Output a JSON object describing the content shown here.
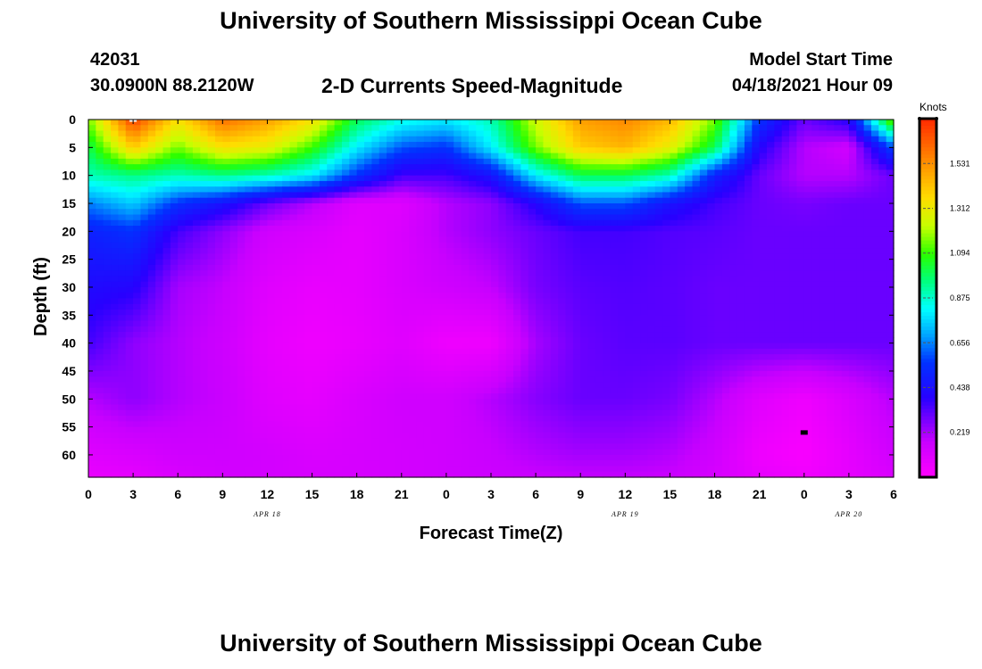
{
  "header": {
    "title": "University of Southern Mississippi Ocean Cube",
    "station_id": "42031",
    "coords": "30.0900N  88.2120W",
    "plot_title": "2-D Currents Speed-Magnitude",
    "model_start_label": "Model Start Time",
    "model_start_value": "04/18/2021 Hour 09"
  },
  "footer": {
    "title": "University of Southern Mississippi Ocean Cube"
  },
  "chart_data": {
    "type": "heatmap",
    "title": "2-D Currents Speed-Magnitude",
    "xlabel": "Forecast Time(Z)",
    "ylabel": "Depth (ft)",
    "x_tick_labels": [
      "0",
      "3",
      "6",
      "9",
      "12",
      "15",
      "18",
      "21",
      "0",
      "3",
      "6",
      "9",
      "12",
      "15",
      "18",
      "21",
      "0",
      "3",
      "6"
    ],
    "x_range_hours": [
      0,
      54
    ],
    "date_labels": [
      {
        "text": "APR 18",
        "hour": 12
      },
      {
        "text": "APR 19",
        "hour": 36
      },
      {
        "text": "APR 20",
        "hour": 51
      }
    ],
    "y_tick_labels": [
      "0",
      "5",
      "10",
      "15",
      "20",
      "25",
      "30",
      "35",
      "40",
      "45",
      "50",
      "55",
      "60"
    ],
    "y_range_ft": [
      0,
      64
    ],
    "y_inverted": true,
    "colorbar": {
      "label": "Knots",
      "min": 0,
      "max": 1.75,
      "tick_values": [
        0.219,
        0.438,
        0.656,
        0.875,
        1.094,
        1.312,
        1.531
      ],
      "tick_labels": [
        "0.219",
        "0.438",
        "0.656",
        "0.875",
        "1.094",
        "1.312",
        "1.531"
      ]
    },
    "grid_hours": [
      0,
      3,
      6,
      9,
      12,
      15,
      18,
      21,
      24,
      27,
      30,
      33,
      36,
      39,
      42,
      45,
      48,
      51,
      54
    ],
    "grid_depths_ft": [
      0,
      5,
      10,
      15,
      20,
      30,
      40,
      50,
      60,
      64
    ],
    "speed_knots": [
      [
        1.15,
        1.7,
        1.35,
        1.6,
        1.5,
        1.35,
        1.0,
        0.85,
        0.8,
        0.9,
        1.25,
        1.5,
        1.55,
        1.45,
        1.15,
        0.55,
        0.3,
        0.4,
        1.2
      ],
      [
        1.0,
        1.4,
        1.15,
        1.35,
        1.3,
        1.1,
        0.8,
        0.6,
        0.55,
        0.8,
        1.15,
        1.4,
        1.45,
        1.3,
        1.0,
        0.4,
        0.2,
        0.15,
        0.6
      ],
      [
        0.9,
        0.95,
        0.9,
        0.95,
        0.9,
        0.8,
        0.55,
        0.35,
        0.35,
        0.45,
        0.8,
        1.0,
        1.0,
        0.9,
        0.5,
        0.3,
        0.2,
        0.2,
        0.3
      ],
      [
        0.65,
        0.75,
        0.55,
        0.45,
        0.3,
        0.2,
        0.1,
        0.1,
        0.2,
        0.25,
        0.4,
        0.6,
        0.6,
        0.45,
        0.35,
        0.3,
        0.28,
        0.3,
        0.3
      ],
      [
        0.5,
        0.55,
        0.35,
        0.25,
        0.15,
        0.12,
        0.08,
        0.12,
        0.2,
        0.25,
        0.3,
        0.35,
        0.35,
        0.33,
        0.32,
        0.3,
        0.3,
        0.3,
        0.3
      ],
      [
        0.42,
        0.4,
        0.22,
        0.18,
        0.1,
        0.07,
        0.08,
        0.12,
        0.15,
        0.18,
        0.28,
        0.32,
        0.33,
        0.32,
        0.3,
        0.3,
        0.3,
        0.3,
        0.3
      ],
      [
        0.35,
        0.25,
        0.2,
        0.16,
        0.08,
        0.05,
        0.07,
        0.1,
        0.05,
        0.05,
        0.22,
        0.3,
        0.32,
        0.32,
        0.3,
        0.3,
        0.3,
        0.3,
        0.3
      ],
      [
        0.2,
        0.25,
        0.2,
        0.17,
        0.1,
        0.08,
        0.12,
        0.15,
        0.15,
        0.2,
        0.26,
        0.3,
        0.3,
        0.28,
        0.2,
        0.1,
        0.05,
        0.12,
        0.2
      ],
      [
        0.1,
        0.12,
        0.15,
        0.15,
        0.14,
        0.12,
        0.13,
        0.14,
        0.15,
        0.17,
        0.2,
        0.22,
        0.22,
        0.2,
        0.15,
        0.05,
        0.02,
        0.08,
        0.15
      ],
      [
        0.07,
        0.08,
        0.12,
        0.14,
        0.14,
        0.13,
        0.13,
        0.14,
        0.15,
        0.16,
        0.17,
        0.18,
        0.18,
        0.17,
        0.13,
        0.08,
        0.05,
        0.08,
        0.12
      ]
    ],
    "markers": [
      {
        "hour": 3,
        "depth_ft": 0,
        "color": "#ffffff",
        "shape": "rect"
      },
      {
        "hour": 48,
        "depth_ft": 56,
        "color": "#000000",
        "shape": "rect"
      }
    ]
  }
}
